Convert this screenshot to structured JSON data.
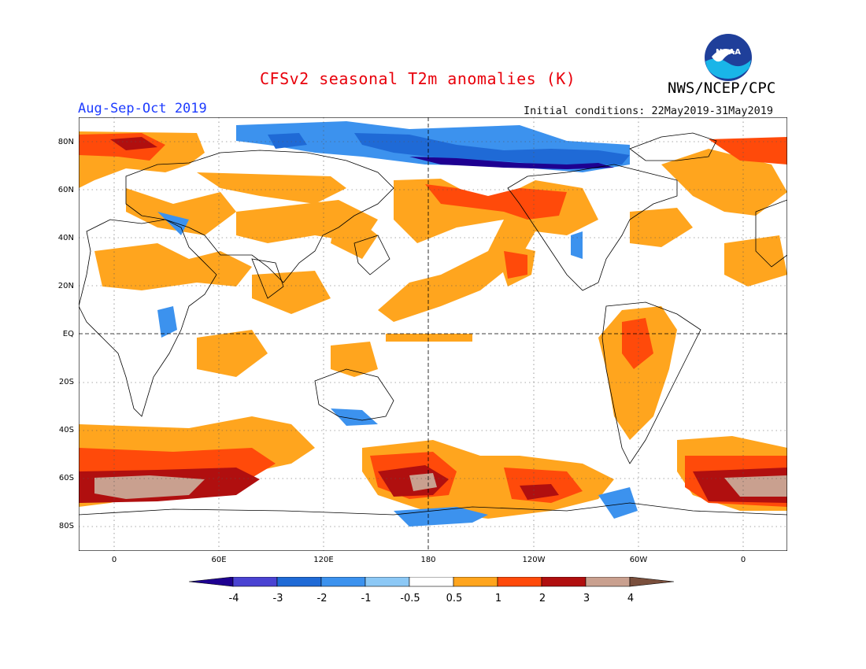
{
  "header": {
    "title": "CFSv2 seasonal T2m anomalies (K)",
    "agency": "NWS/NCEP/CPC",
    "season": "Aug-Sep-Oct 2019",
    "initial_conditions": "Initial conditions: 22May2019-31May2019",
    "logo_text": "NOAA"
  },
  "map": {
    "lat_labels": [
      "80N",
      "60N",
      "40N",
      "20N",
      "EQ",
      "20S",
      "40S",
      "60S",
      "80S"
    ],
    "lon_labels": [
      "0",
      "60E",
      "120E",
      "180",
      "120W",
      "60W",
      "0"
    ]
  },
  "legend": {
    "labels": [
      "-4",
      "-3",
      "-2",
      "-1",
      "-0.5",
      "0.5",
      "1",
      "2",
      "3",
      "4"
    ],
    "colors": [
      "#1e0091",
      "#4a43d2",
      "#1f6ad6",
      "#3c92ee",
      "#8cc8f5",
      "#ffffff",
      "#ffa51e",
      "#ff4a0a",
      "#b00f0f",
      "#c9a08f",
      "#7a4f3c"
    ]
  }
}
